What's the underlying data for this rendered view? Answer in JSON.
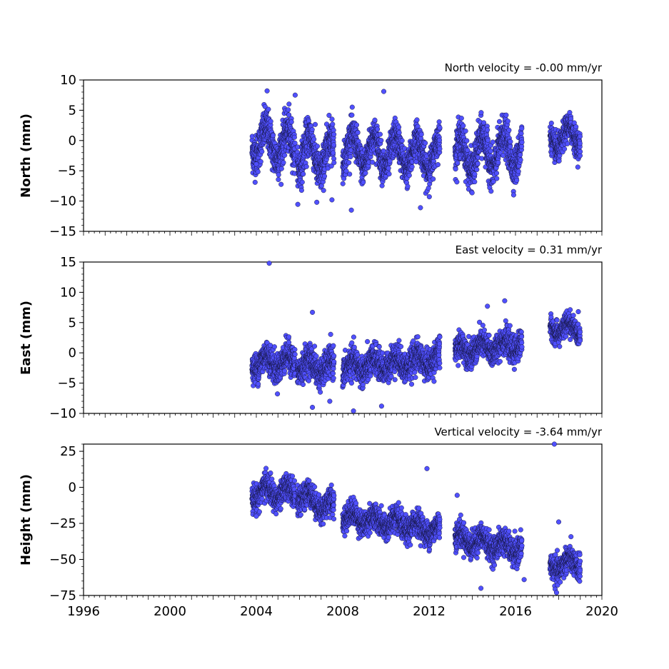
{
  "chart_data": [
    {
      "type": "scatter",
      "panel": "north",
      "ylabel": "North (mm)",
      "annotation": "North velocity = -0.00 mm/yr",
      "ylim": [
        -15,
        10
      ],
      "yticks": [
        10,
        5,
        0,
        -5,
        -10,
        -15
      ],
      "xlim": [
        1996,
        2020
      ],
      "segments": [
        {
          "x": [
            2003.8,
            2005.8
          ],
          "center": [
            0.0,
            -1.0
          ],
          "spread": 3.0,
          "period_amp": 2.5
        },
        {
          "x": [
            2005.9,
            2007.6
          ],
          "center": [
            -2.0,
            -2.5
          ],
          "spread": 3.0,
          "period_amp": 3.0
        },
        {
          "x": [
            2008.0,
            2012.5
          ],
          "center": [
            -1.5,
            -2.5
          ],
          "spread": 2.6,
          "period_amp": 2.6
        },
        {
          "x": [
            2013.2,
            2016.3
          ],
          "center": [
            -2.5,
            -1.5
          ],
          "spread": 2.8,
          "period_amp": 2.8
        },
        {
          "x": [
            2017.6,
            2019.0
          ],
          "center": [
            0.0,
            1.0
          ],
          "spread": 2.0,
          "period_amp": 1.8
        }
      ],
      "outliers": [
        [
          2004.5,
          8.2
        ],
        [
          2005.8,
          7.5
        ],
        [
          2009.9,
          8.1
        ],
        [
          2008.4,
          -11.5
        ],
        [
          2011.6,
          -11.1
        ],
        [
          2006.8,
          -10.2
        ],
        [
          2004.0,
          -3.9
        ],
        [
          2007.5,
          -9.8
        ]
      ]
    },
    {
      "type": "scatter",
      "panel": "east",
      "ylabel": "East (mm)",
      "annotation": "East velocity = 0.31 mm/yr",
      "ylim": [
        -10,
        15
      ],
      "yticks": [
        15,
        10,
        5,
        0,
        -5,
        -10
      ],
      "xlim": [
        1996,
        2020
      ],
      "segments": [
        {
          "x": [
            2003.8,
            2005.8
          ],
          "center": [
            -1.5,
            -1.5
          ],
          "spread": 2.2,
          "period_amp": 1.2
        },
        {
          "x": [
            2005.9,
            2007.6
          ],
          "center": [
            -2.0,
            -2.5
          ],
          "spread": 2.2,
          "period_amp": 1.2
        },
        {
          "x": [
            2008.0,
            2012.5
          ],
          "center": [
            -2.5,
            -1.0
          ],
          "spread": 2.2,
          "period_amp": 1.0
        },
        {
          "x": [
            2013.2,
            2016.3
          ],
          "center": [
            0.2,
            1.5
          ],
          "spread": 2.0,
          "period_amp": 1.0
        },
        {
          "x": [
            2017.6,
            2019.0
          ],
          "center": [
            4.0,
            4.0
          ],
          "spread": 1.6,
          "period_amp": 1.0
        }
      ],
      "outliers": [
        [
          2004.6,
          14.8
        ],
        [
          2006.6,
          6.7
        ],
        [
          2008.5,
          -9.6
        ],
        [
          2009.8,
          -8.8
        ],
        [
          2006.6,
          -9.0
        ],
        [
          2014.7,
          7.7
        ],
        [
          2015.5,
          8.6
        ],
        [
          2007.4,
          -8.0
        ]
      ]
    },
    {
      "type": "scatter",
      "panel": "height",
      "ylabel": "Height (mm)",
      "annotation": "Vertical velocity = -3.64 mm/yr",
      "ylim": [
        -75,
        30
      ],
      "yticks": [
        25,
        0,
        -25,
        -50,
        -75
      ],
      "xlim": [
        1996,
        2020
      ],
      "xticks": [
        1996,
        2000,
        2004,
        2008,
        2012,
        2016,
        2020
      ],
      "xtick_labels": [
        "1996",
        "2000",
        "2004",
        "2008",
        "2012",
        "2016",
        "2020"
      ],
      "segments": [
        {
          "x": [
            2003.8,
            2005.8
          ],
          "center": [
            -3.0,
            -4.0
          ],
          "spread": 8.0,
          "period_amp": 5.0
        },
        {
          "x": [
            2005.9,
            2007.6
          ],
          "center": [
            -5.0,
            -15.0
          ],
          "spread": 8.0,
          "period_amp": 5.0
        },
        {
          "x": [
            2008.0,
            2012.5
          ],
          "center": [
            -20.0,
            -30.0
          ],
          "spread": 8.0,
          "period_amp": 4.0
        },
        {
          "x": [
            2013.2,
            2016.3
          ],
          "center": [
            -35.0,
            -43.0
          ],
          "spread": 8.0,
          "period_amp": 4.0
        },
        {
          "x": [
            2017.6,
            2019.0
          ],
          "center": [
            -55.0,
            -52.0
          ],
          "spread": 8.0,
          "period_amp": 4.0
        }
      ],
      "outliers": [
        [
          2017.8,
          30.0
        ],
        [
          2011.9,
          13.0
        ],
        [
          2014.4,
          -70.0
        ],
        [
          2017.9,
          -73.0
        ],
        [
          2018.0,
          -24.0
        ],
        [
          2013.3,
          -5.5
        ],
        [
          2016.4,
          -64.0
        ],
        [
          2004.0,
          -20.0
        ]
      ]
    }
  ]
}
